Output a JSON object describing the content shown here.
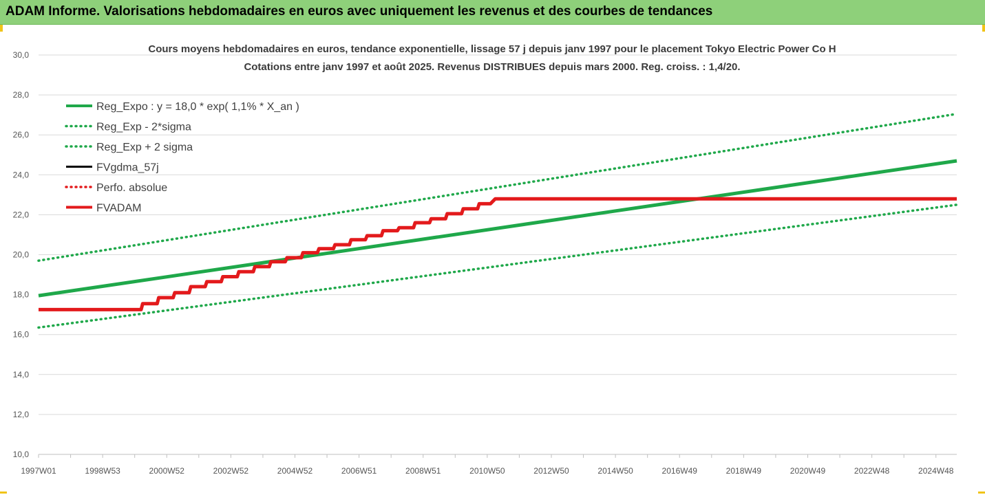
{
  "banner": {
    "title": "ADAM Informe. Valorisations hebdomadaires en euros avec uniquement les revenus et des courbes de tendances"
  },
  "colors": {
    "banner_bg": "#8ed07a",
    "reg_expo": "#1fa84a",
    "sigma": "#1fa84a",
    "fvgdma": "#000000",
    "perfo": "#e31a1c",
    "fvadam": "#e31a1c",
    "grid": "#d9d9d9",
    "corner_accent": "#f0c419"
  },
  "chart_data": {
    "type": "line",
    "title": "Cours moyens hebdomadaires en euros, tendance exponentielle, lissage 57 j depuis janv 1997 pour le placement Tokyo Electric Power Co H",
    "subtitle": "Cotations entre janv 1997 et août 2025.  Revenus DISTRIBUES depuis mars 2000. Reg. croiss. : 1,4/20.",
    "xlabel": "",
    "ylabel": "",
    "ylim": [
      10,
      30
    ],
    "yticks": [
      "10,0",
      "12,0",
      "14,0",
      "16,0",
      "18,0",
      "20,0",
      "22,0",
      "24,0",
      "26,0",
      "28,0",
      "30,0"
    ],
    "xlim": [
      1997.0,
      2025.65
    ],
    "xticks": [
      {
        "label": "1997W01",
        "x": 1997.0
      },
      {
        "label": "1998W53",
        "x": 1999.0
      },
      {
        "label": "2000W52",
        "x": 2001.0
      },
      {
        "label": "2002W52",
        "x": 2003.0
      },
      {
        "label": "2004W52",
        "x": 2005.0
      },
      {
        "label": "2006W51",
        "x": 2007.0
      },
      {
        "label": "2008W51",
        "x": 2009.0
      },
      {
        "label": "2010W50",
        "x": 2011.0
      },
      {
        "label": "2012W50",
        "x": 2013.0
      },
      {
        "label": "2014W50",
        "x": 2015.0
      },
      {
        "label": "2016W49",
        "x": 2017.0
      },
      {
        "label": "2018W49",
        "x": 2019.0
      },
      {
        "label": "2020W49",
        "x": 2021.0
      },
      {
        "label": "2022W48",
        "x": 2023.0
      },
      {
        "label": "2024W48",
        "x": 2025.0
      }
    ],
    "grid": true,
    "legend_position": "top-left",
    "series": [
      {
        "name": "Reg_Expo : y = 18,0 * exp( 1,1% *  X_an )",
        "style": "solid-thick",
        "color": "#1fa84a",
        "x": [
          1997.0,
          2025.65
        ],
        "y": [
          17.95,
          24.7
        ]
      },
      {
        "name": "Reg_Exp - 2*sigma",
        "style": "dotted",
        "color": "#1fa84a",
        "x": [
          1997.0,
          2025.65
        ],
        "y": [
          16.35,
          22.5
        ]
      },
      {
        "name": "Reg_Exp + 2 sigma",
        "style": "dotted",
        "color": "#1fa84a",
        "x": [
          1997.0,
          2025.65
        ],
        "y": [
          19.7,
          27.05
        ]
      },
      {
        "name": "FVgdma_57j",
        "style": "solid",
        "color": "#000000",
        "x": [],
        "y": []
      },
      {
        "name": "Perfo. absolue",
        "style": "dotted",
        "color": "#e31a1c",
        "x": [],
        "y": []
      },
      {
        "name": "FVADAM",
        "style": "solid-thick",
        "color": "#e31a1c",
        "x": [
          1997.0,
          2000.2,
          2000.25,
          2000.7,
          2000.75,
          2001.2,
          2001.25,
          2001.7,
          2001.75,
          2002.2,
          2002.25,
          2002.7,
          2002.75,
          2003.2,
          2003.25,
          2003.7,
          2003.75,
          2004.2,
          2004.25,
          2004.7,
          2004.75,
          2005.2,
          2005.25,
          2005.7,
          2005.75,
          2006.2,
          2006.25,
          2006.7,
          2006.75,
          2007.2,
          2007.25,
          2007.7,
          2007.75,
          2008.2,
          2008.25,
          2008.7,
          2008.75,
          2009.2,
          2009.25,
          2009.7,
          2009.75,
          2010.2,
          2010.25,
          2010.7,
          2010.75,
          2011.1,
          2011.25,
          2025.65
        ],
        "y": [
          17.25,
          17.25,
          17.55,
          17.55,
          17.85,
          17.85,
          18.1,
          18.1,
          18.4,
          18.4,
          18.65,
          18.65,
          18.9,
          18.9,
          19.15,
          19.15,
          19.4,
          19.4,
          19.65,
          19.65,
          19.85,
          19.85,
          20.1,
          20.1,
          20.3,
          20.3,
          20.5,
          20.5,
          20.75,
          20.75,
          20.95,
          20.95,
          21.2,
          21.2,
          21.35,
          21.35,
          21.6,
          21.6,
          21.8,
          21.8,
          22.05,
          22.05,
          22.3,
          22.3,
          22.55,
          22.55,
          22.8,
          22.8
        ]
      }
    ]
  }
}
